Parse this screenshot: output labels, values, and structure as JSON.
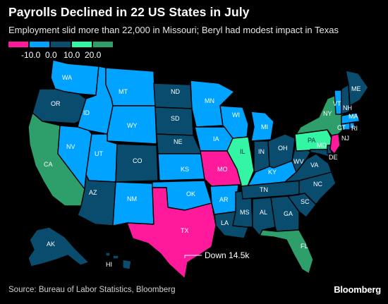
{
  "header": {
    "title": "Payrolls Declined in 22 US States in July",
    "subtitle": "Employment slid more than 22,000 in Missouri; Beryl had modest impact in Texas"
  },
  "legend": {
    "ticks": [
      "-10.0",
      "0.0",
      "10.0",
      "20.0"
    ],
    "colors": [
      "#ff1a9c",
      "#00a3ff",
      "#0a4c6e",
      "#33f5a3",
      "#2e9e6b"
    ]
  },
  "colors": {
    "strong_decline": "#ff1a9c",
    "mild_decline": "#00a3ff",
    "mild_gain": "#0a4c6e",
    "gain": "#33f5a3",
    "strong_gain": "#2e9e6b"
  },
  "states": {
    "WA": "WA",
    "OR": "OR",
    "CA": "CA",
    "ID": "ID",
    "NV": "NV",
    "MT": "MT",
    "WY": "WY",
    "UT": "UT",
    "AZ": "AZ",
    "CO": "CO",
    "NM": "NM",
    "ND": "ND",
    "SD": "SD",
    "NE": "NE",
    "KS": "KS",
    "OK": "OK",
    "TX": "TX",
    "MN": "MN",
    "IA": "IA",
    "MO": "MO",
    "AR": "AR",
    "LA": "LA",
    "WI": "WI",
    "IL": "IL",
    "MS": "MS",
    "MI": "MI",
    "IN": "IN",
    "KY": "KY",
    "TN": "TN",
    "AL": "AL",
    "OH": "OH",
    "GA": "GA",
    "FL": "FL",
    "SC": "SC",
    "NC": "NC",
    "VA": "VA",
    "WV": "WV",
    "PA": "PA",
    "NY": "NY",
    "VT": "VT",
    "NH": "NH",
    "ME": "ME",
    "MA": "MA",
    "NJ": "NJ",
    "MD": "MD",
    "DE": "DE",
    "CT": "CT",
    "RI": "RI",
    "AK": "AK",
    "HI": "HI"
  },
  "annotation": {
    "text": "Down 14.5k"
  },
  "footer": {
    "source": "Source: Bureau of Labor Statistics, Bloomberg",
    "brand": "Bloomberg"
  }
}
